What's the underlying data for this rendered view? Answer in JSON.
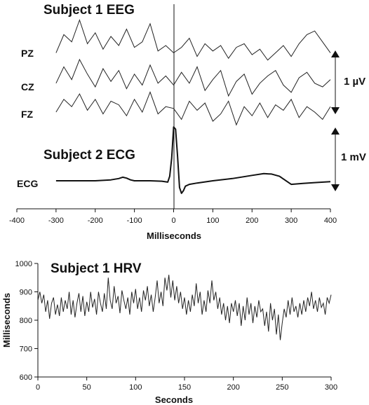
{
  "chart_data": [
    {
      "type": "line",
      "title": "Subject 1 EEG",
      "channels": [
        "PZ",
        "CZ",
        "FZ"
      ],
      "scale_bar_label": "1 µV",
      "xlim": [
        -400,
        400
      ],
      "x_extent": [
        -300,
        400
      ],
      "event_x": 0,
      "series": [
        {
          "name": "PZ",
          "x": [
            -300,
            -280,
            -260,
            -240,
            -220,
            -200,
            -180,
            -160,
            -140,
            -120,
            -100,
            -80,
            -60,
            -40,
            -20,
            0,
            20,
            40,
            60,
            80,
            100,
            120,
            140,
            160,
            180,
            200,
            220,
            240,
            260,
            280,
            300,
            320,
            340,
            360,
            380,
            400
          ],
          "values": [
            0.05,
            0.55,
            0.35,
            0.95,
            0.3,
            0.6,
            0.15,
            0.5,
            0.25,
            0.7,
            0.2,
            0.35,
            0.85,
            0.1,
            0.25,
            0.05,
            0.2,
            0.45,
            -0.05,
            0.3,
            0.1,
            0.25,
            -0.1,
            0.2,
            0.3,
            0.0,
            0.15,
            -0.15,
            0.05,
            0.25,
            -0.05,
            0.3,
            0.55,
            0.65,
            0.35,
            0.05
          ]
        },
        {
          "name": "CZ",
          "x": [
            -300,
            -280,
            -260,
            -240,
            -220,
            -200,
            -180,
            -160,
            -140,
            -120,
            -100,
            -80,
            -60,
            -40,
            -20,
            0,
            20,
            40,
            60,
            80,
            100,
            120,
            140,
            160,
            180,
            200,
            220,
            240,
            260,
            280,
            300,
            320,
            340,
            360,
            380,
            400
          ],
          "values": [
            0.1,
            0.55,
            0.2,
            0.75,
            0.35,
            0.0,
            0.5,
            0.15,
            0.45,
            -0.05,
            0.35,
            0.05,
            0.6,
            0.1,
            0.3,
            0.05,
            0.4,
            0.1,
            0.55,
            -0.1,
            0.2,
            0.45,
            -0.25,
            0.15,
            0.35,
            -0.2,
            0.1,
            0.3,
            0.45,
            0.05,
            -0.15,
            0.25,
            0.4,
            0.1,
            0.0,
            0.2
          ]
        },
        {
          "name": "FZ",
          "x": [
            -300,
            -280,
            -260,
            -240,
            -220,
            -200,
            -180,
            -160,
            -140,
            -120,
            -100,
            -80,
            -60,
            -40,
            -20,
            0,
            20,
            40,
            60,
            80,
            100,
            120,
            140,
            160,
            180,
            200,
            220,
            240,
            260,
            280,
            300,
            320,
            340,
            360,
            380,
            400
          ],
          "values": [
            0.0,
            0.35,
            0.15,
            0.5,
            0.05,
            0.35,
            -0.05,
            0.3,
            0.2,
            -0.1,
            0.35,
            0.0,
            0.55,
            -0.05,
            0.15,
            0.1,
            -0.2,
            0.3,
            0.05,
            0.25,
            -0.25,
            -0.05,
            0.3,
            -0.35,
            0.15,
            -0.1,
            0.25,
            -0.15,
            0.2,
            0.05,
            0.35,
            -0.15,
            0.15,
            0.0,
            -0.2,
            0.15
          ]
        }
      ]
    },
    {
      "type": "line",
      "title": "Subject 2 ECG",
      "channels": [
        "ECG"
      ],
      "scale_bar_label": "1 mV",
      "xlim": [
        -400,
        400
      ],
      "xticks": [
        -400,
        -300,
        -200,
        -100,
        0,
        100,
        200,
        300,
        400
      ],
      "xlabel": "Milliseconds",
      "series": [
        {
          "name": "ECG",
          "x": [
            -300,
            -250,
            -200,
            -160,
            -140,
            -130,
            -120,
            -110,
            -100,
            -60,
            -30,
            -15,
            -10,
            -5,
            0,
            5,
            10,
            15,
            20,
            25,
            30,
            40,
            60,
            100,
            150,
            200,
            230,
            250,
            270,
            300,
            330,
            360,
            400
          ],
          "values": [
            0.0,
            0.0,
            0.0,
            0.02,
            0.05,
            0.08,
            0.06,
            0.02,
            0.0,
            0.0,
            -0.01,
            -0.03,
            0.1,
            0.5,
            1.2,
            1.15,
            0.55,
            -0.15,
            -0.28,
            -0.22,
            -0.12,
            -0.08,
            -0.05,
            0.0,
            0.05,
            0.12,
            0.16,
            0.15,
            0.1,
            -0.08,
            -0.06,
            -0.04,
            -0.02
          ]
        }
      ]
    },
    {
      "type": "line",
      "title": "Subject 1 HRV",
      "xlabel": "Seconds",
      "ylabel": "Milliseconds",
      "xlim": [
        0,
        300
      ],
      "ylim": [
        600,
        1000
      ],
      "xticks": [
        0,
        50,
        100,
        150,
        200,
        250,
        300
      ],
      "yticks": [
        600,
        700,
        800,
        900,
        1000
      ],
      "series": [
        {
          "name": "",
          "x": [
            0,
            2,
            4,
            6,
            8,
            10,
            12,
            14,
            16,
            18,
            20,
            22,
            24,
            26,
            28,
            30,
            32,
            34,
            36,
            38,
            40,
            42,
            44,
            46,
            48,
            50,
            52,
            54,
            56,
            58,
            60,
            62,
            64,
            66,
            68,
            70,
            72,
            74,
            76,
            78,
            80,
            82,
            84,
            86,
            88,
            90,
            92,
            94,
            96,
            98,
            100,
            102,
            104,
            106,
            108,
            110,
            112,
            114,
            116,
            118,
            120,
            122,
            124,
            126,
            128,
            130,
            132,
            134,
            136,
            138,
            140,
            142,
            144,
            146,
            148,
            150,
            152,
            154,
            156,
            158,
            160,
            162,
            164,
            166,
            168,
            170,
            172,
            174,
            176,
            178,
            180,
            182,
            184,
            186,
            188,
            190,
            192,
            194,
            196,
            198,
            200,
            202,
            204,
            206,
            208,
            210,
            212,
            214,
            216,
            218,
            220,
            222,
            224,
            226,
            228,
            230,
            232,
            234,
            236,
            238,
            240,
            242,
            244,
            246,
            248,
            250,
            252,
            254,
            256,
            258,
            260,
            262,
            264,
            266,
            268,
            270,
            272,
            274,
            276,
            278,
            280,
            282,
            284,
            286,
            288,
            290,
            292,
            294,
            296,
            298,
            300
          ],
          "values": [
            870,
            900,
            860,
            890,
            830,
            870,
            805,
            860,
            880,
            820,
            855,
            815,
            880,
            830,
            870,
            840,
            900,
            820,
            870,
            810,
            860,
            895,
            830,
            885,
            815,
            865,
            830,
            900,
            845,
            875,
            820,
            900,
            860,
            830,
            895,
            840,
            950,
            870,
            840,
            920,
            860,
            885,
            825,
            905,
            870,
            840,
            880,
            820,
            900,
            860,
            910,
            840,
            880,
            830,
            905,
            870,
            920,
            850,
            890,
            830,
            880,
            940,
            860,
            900,
            850,
            950,
            905,
            960,
            880,
            940,
            870,
            920,
            860,
            900,
            840,
            880,
            820,
            870,
            830,
            890,
            850,
            930,
            860,
            900,
            820,
            870,
            830,
            905,
            860,
            940,
            870,
            900,
            840,
            880,
            820,
            860,
            800,
            850,
            790,
            860,
            830,
            870,
            815,
            860,
            780,
            850,
            800,
            880,
            820,
            860,
            790,
            850,
            810,
            870,
            830,
            840,
            780,
            830,
            760,
            860,
            800,
            840,
            750,
            820,
            730,
            790,
            840,
            810,
            870,
            820,
            880,
            830,
            850,
            810,
            860,
            820,
            870,
            830,
            880,
            850,
            900,
            840,
            870,
            830,
            880,
            845,
            860,
            820,
            880,
            860,
            890
          ]
        }
      ]
    }
  ]
}
